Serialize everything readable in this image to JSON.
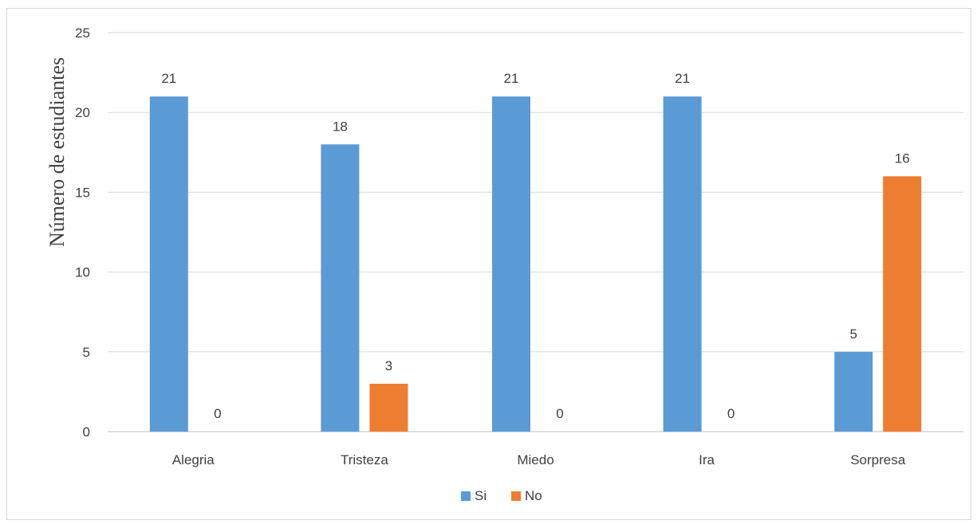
{
  "chart_data": {
    "type": "bar",
    "title": "",
    "xlabel": "",
    "ylabel": "Número de estudiantes",
    "categories": [
      "Alegria",
      "Tristeza",
      "Miedo",
      "Ira",
      "Sorpresa"
    ],
    "series": [
      {
        "name": "Si",
        "color": "#5b9bd5",
        "values": [
          21,
          18,
          21,
          21,
          5
        ]
      },
      {
        "name": "No",
        "color": "#ed7d31",
        "values": [
          0,
          3,
          0,
          0,
          16
        ]
      }
    ],
    "ylim": [
      0,
      25
    ],
    "yticks": [
      0,
      5,
      10,
      15,
      20,
      25
    ],
    "grid": true,
    "legend": "bottom-center",
    "data_labels": true
  }
}
